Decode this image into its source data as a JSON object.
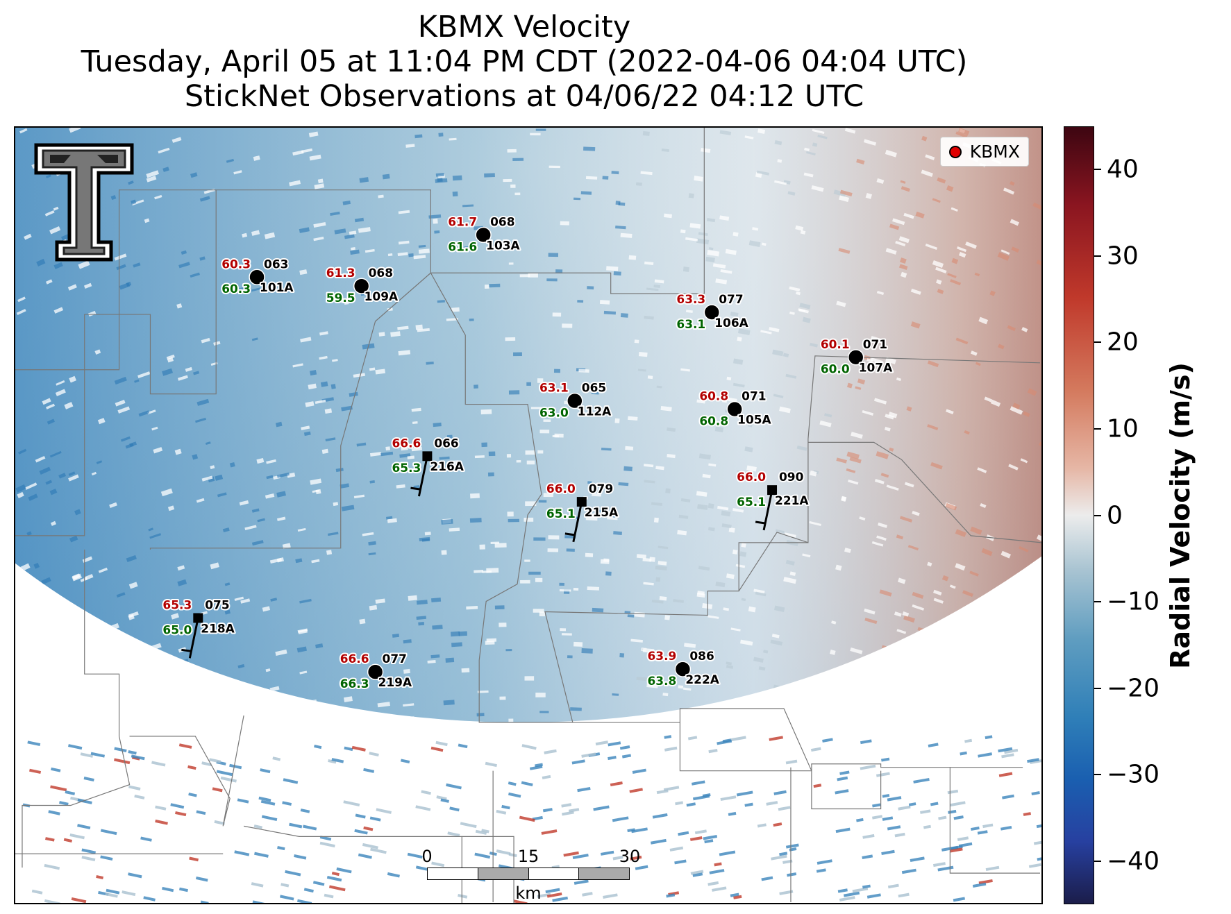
{
  "title": {
    "line1": "KBMX Velocity",
    "line2": "Tuesday, April 05 at 11:04 PM CDT (2022-04-06 04:04 UTC)",
    "line3": "StickNet Observations at 04/06/22 04:12 UTC"
  },
  "legend": {
    "label": "KBMX",
    "marker_color": "#e00000"
  },
  "colorbar": {
    "label": "Radial Velocity (m/s)",
    "min": -45,
    "max": 45,
    "ticks": [
      {
        "value": 40,
        "label": "40"
      },
      {
        "value": 30,
        "label": "30"
      },
      {
        "value": 20,
        "label": "20"
      },
      {
        "value": 10,
        "label": "10"
      },
      {
        "value": 0,
        "label": "0"
      },
      {
        "value": -10,
        "label": "−10"
      },
      {
        "value": -20,
        "label": "−20"
      },
      {
        "value": -30,
        "label": "−30"
      },
      {
        "value": -40,
        "label": "−40"
      }
    ],
    "colors": {
      "max": "#3d0611",
      "zero": "#ececec",
      "min": "#1b1d4a"
    }
  },
  "scalebar": {
    "ticks": [
      "0",
      "15",
      "30"
    ],
    "unit": "km"
  },
  "label_colors": {
    "temperature": "#b30000",
    "dewpoint": "#006400",
    "station": "#000000"
  },
  "stations": [
    {
      "id": "101A",
      "direction": "063",
      "temperature": "60.3",
      "dewpoint": "60.3",
      "marker": "circle"
    },
    {
      "id": "109A",
      "direction": "068",
      "temperature": "61.3",
      "dewpoint": "59.5",
      "marker": "circle"
    },
    {
      "id": "103A",
      "direction": "068",
      "temperature": "61.7",
      "dewpoint": "61.6",
      "marker": "circle"
    },
    {
      "id": "106A",
      "direction": "077",
      "temperature": "63.3",
      "dewpoint": "63.1",
      "marker": "circle"
    },
    {
      "id": "107A",
      "direction": "071",
      "temperature": "60.1",
      "dewpoint": "60.0",
      "marker": "circle"
    },
    {
      "id": "112A",
      "direction": "065",
      "temperature": "63.1",
      "dewpoint": "63.0",
      "marker": "circle"
    },
    {
      "id": "105A",
      "direction": "071",
      "temperature": "60.8",
      "dewpoint": "60.8",
      "marker": "circle"
    },
    {
      "id": "216A",
      "direction": "066",
      "temperature": "66.6",
      "dewpoint": "65.3",
      "marker": "barb"
    },
    {
      "id": "215A",
      "direction": "079",
      "temperature": "66.0",
      "dewpoint": "65.1",
      "marker": "barb"
    },
    {
      "id": "221A",
      "direction": "090",
      "temperature": "66.0",
      "dewpoint": "65.1",
      "marker": "barb"
    },
    {
      "id": "218A",
      "direction": "075",
      "temperature": "65.3",
      "dewpoint": "65.0",
      "marker": "barb"
    },
    {
      "id": "219A",
      "direction": "077",
      "temperature": "66.6",
      "dewpoint": "66.3",
      "marker": "circle"
    },
    {
      "id": "222A",
      "direction": "086",
      "temperature": "63.9",
      "dewpoint": "63.8",
      "marker": "circle"
    }
  ]
}
